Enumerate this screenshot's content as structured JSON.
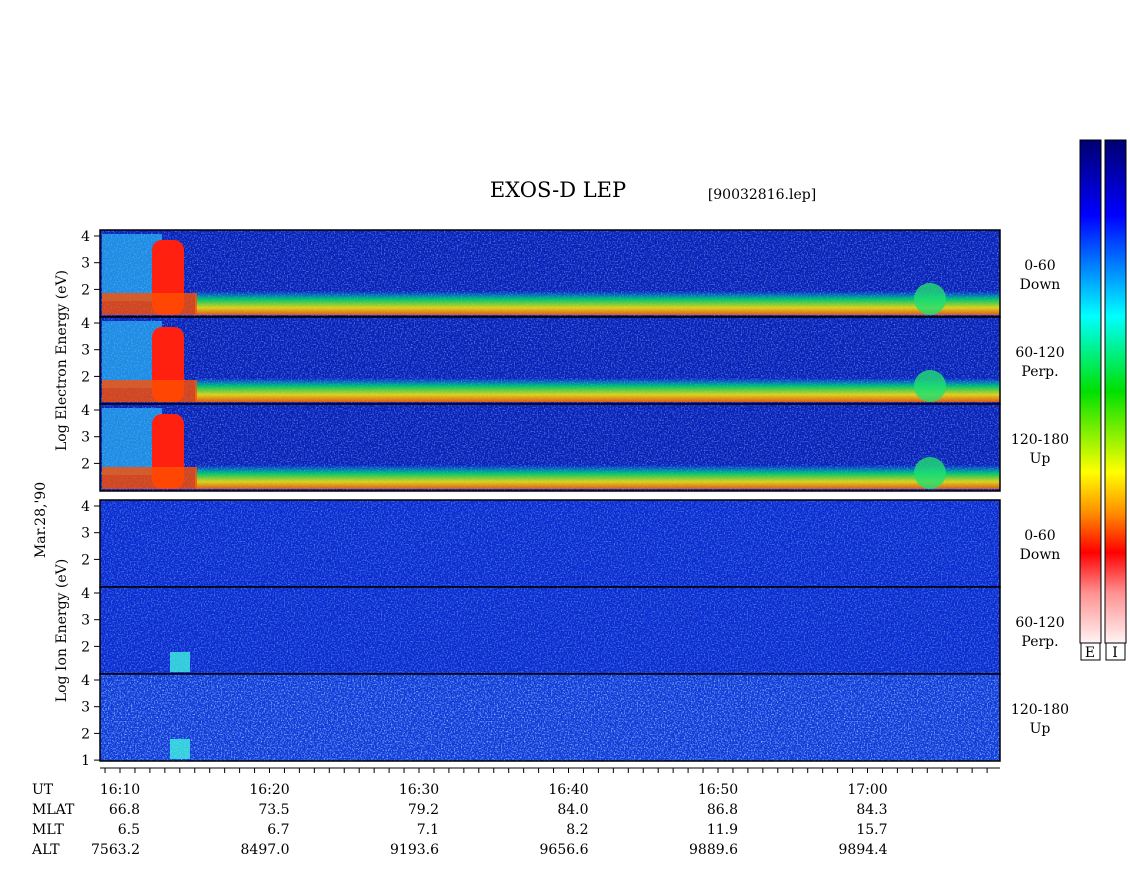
{
  "header": {
    "title": "EXOS-D LEP",
    "file": "[90032816.lep]"
  },
  "date": "Mar.28,'90",
  "electron": {
    "axis_label": "Log Electron Energy (eV)",
    "panels": [
      {
        "label": [
          "0-60",
          "Down"
        ],
        "ticks": [
          "4",
          "3",
          "2"
        ]
      },
      {
        "label": [
          "60-120",
          "Perp."
        ],
        "ticks": [
          "4",
          "3",
          "2"
        ]
      },
      {
        "label": [
          "120-180",
          "Up"
        ],
        "ticks": [
          "4",
          "3",
          "2"
        ]
      }
    ]
  },
  "ion": {
    "axis_label": "Log Ion Energy (eV)",
    "panels": [
      {
        "label": [
          "0-60",
          "Down"
        ],
        "ticks": [
          "4",
          "3",
          "2"
        ]
      },
      {
        "label": [
          "60-120",
          "Perp."
        ],
        "ticks": [
          "4",
          "3",
          "2"
        ]
      },
      {
        "label": [
          "120-180",
          "Up"
        ],
        "ticks": [
          "4",
          "3",
          "2",
          "1"
        ]
      }
    ]
  },
  "colorbars": [
    "E",
    "I"
  ],
  "time_table": {
    "row_labels": [
      "UT",
      "MLAT",
      "MLT",
      "ALT"
    ],
    "columns": [
      [
        "16:10",
        "66.8",
        "6.5",
        "7563.2"
      ],
      [
        "16:20",
        "73.5",
        "6.7",
        "8497.0"
      ],
      [
        "16:30",
        "79.2",
        "7.1",
        "9193.6"
      ],
      [
        "16:40",
        "84.0",
        "8.2",
        "9656.6"
      ],
      [
        "16:50",
        "86.8",
        "11.9",
        "9889.6"
      ],
      [
        "17:00",
        "84.3",
        "15.7",
        "9894.4"
      ]
    ]
  }
}
